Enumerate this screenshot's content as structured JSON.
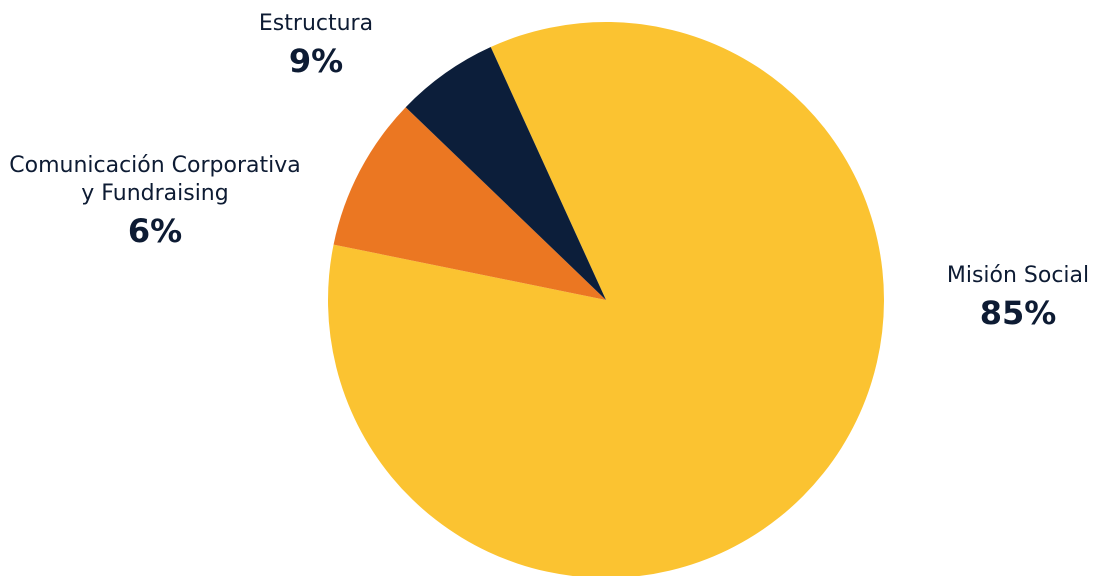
{
  "chart_data": {
    "type": "pie",
    "title": "",
    "slices": [
      {
        "label": "Misión Social",
        "value": 85,
        "value_label": "85%",
        "color": "#fbc331"
      },
      {
        "label": "Estructura",
        "value": 9,
        "value_label": "9%",
        "color": "#eb7722"
      },
      {
        "label": "Comunicación Corporativa\ny Fundraising",
        "value": 6,
        "value_label": "6%",
        "color": "#0c1e3a"
      }
    ]
  }
}
